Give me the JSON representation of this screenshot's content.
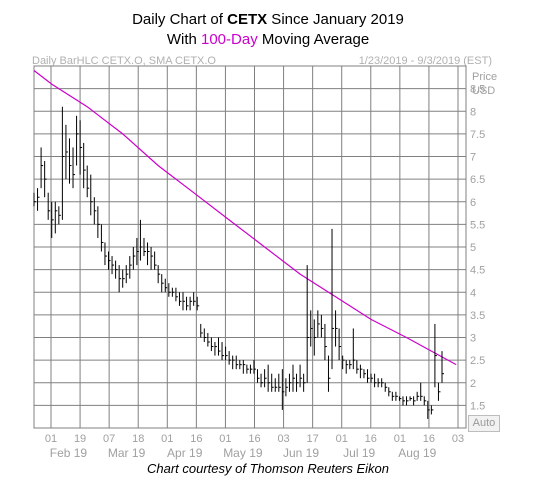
{
  "title": {
    "line1_prefix": "Daily Chart of ",
    "symbol": "CETX",
    "line1_suffix": " Since January 2019",
    "line2_prefix": "With ",
    "highlight": "100-Day",
    "line2_suffix": " Moving Average"
  },
  "subtitle_left": "Daily BarHLC CETX.O, SMA CETX.O",
  "subtitle_right": "1/23/2019 - 9/3/2019 (EST)",
  "footer": "Chart courtesy of Thomson Reuters Eikon",
  "auto_label": "Auto",
  "colors": {
    "price": "#000000",
    "sma": "#cc00cc",
    "grid": "#808080"
  },
  "chart_data": {
    "type": "line",
    "ylabel": "Price USD",
    "y_axis_title": "Price",
    "y_axis_unit": "USD",
    "ylim": [
      1.0,
      9.0
    ],
    "y_ticks": [
      1.5,
      2,
      2.5,
      3,
      3.5,
      4,
      4.5,
      5,
      5.5,
      6,
      6.5,
      7,
      7.5,
      8,
      8.5
    ],
    "x_day_ticks": [
      "01",
      "19",
      "07",
      "18",
      "01",
      "16",
      "01",
      "16",
      "03",
      "17",
      "01",
      "16",
      "01",
      "16",
      "03"
    ],
    "x_month_labels": [
      "Feb 19",
      "Mar 19",
      "Apr 19",
      "May 19",
      "Jun 19",
      "Jul 19",
      "Aug 19"
    ],
    "grid": true,
    "series": [
      {
        "name": "Daily BarHLC CETX.O",
        "style": "hlc-bars",
        "bars": [
          [
            6.2,
            5.9,
            6.0
          ],
          [
            6.3,
            5.8,
            6.1
          ],
          [
            7.2,
            6.3,
            6.8
          ],
          [
            6.9,
            6.1,
            6.5
          ],
          [
            6.2,
            5.6,
            5.8
          ],
          [
            6.0,
            5.2,
            5.6
          ],
          [
            6.0,
            5.3,
            5.8
          ],
          [
            5.9,
            5.5,
            5.7
          ],
          [
            8.1,
            5.6,
            7.0
          ],
          [
            7.7,
            6.5,
            7.1
          ],
          [
            7.4,
            6.4,
            6.8
          ],
          [
            7.2,
            6.3,
            6.6
          ],
          [
            7.9,
            6.8,
            7.5
          ],
          [
            7.8,
            6.6,
            7.2
          ],
          [
            7.3,
            6.3,
            6.7
          ],
          [
            6.8,
            6.1,
            6.3
          ],
          [
            6.6,
            5.7,
            6.0
          ],
          [
            6.1,
            5.5,
            5.8
          ],
          [
            5.9,
            5.2,
            5.5
          ],
          [
            5.5,
            4.9,
            5.1
          ],
          [
            5.1,
            4.6,
            4.8
          ],
          [
            4.9,
            4.5,
            4.7
          ],
          [
            4.8,
            4.4,
            4.6
          ],
          [
            4.7,
            4.3,
            4.5
          ],
          [
            4.6,
            4.0,
            4.3
          ],
          [
            4.5,
            4.1,
            4.3
          ],
          [
            4.6,
            4.2,
            4.4
          ],
          [
            4.8,
            4.3,
            4.6
          ],
          [
            5.0,
            4.5,
            4.8
          ],
          [
            5.2,
            4.6,
            4.9
          ],
          [
            5.6,
            4.7,
            5.0
          ],
          [
            5.2,
            4.8,
            4.9
          ],
          [
            5.1,
            4.6,
            4.9
          ],
          [
            5.0,
            4.5,
            4.8
          ],
          [
            4.9,
            4.5,
            4.6
          ],
          [
            4.6,
            4.2,
            4.4
          ],
          [
            4.4,
            4.0,
            4.2
          ],
          [
            4.3,
            4.0,
            4.1
          ],
          [
            4.2,
            3.9,
            4.0
          ],
          [
            4.1,
            3.9,
            4.0
          ],
          [
            4.1,
            3.8,
            3.9
          ],
          [
            4.0,
            3.7,
            3.8
          ],
          [
            4.0,
            3.6,
            3.8
          ],
          [
            3.9,
            3.6,
            3.7
          ],
          [
            3.9,
            3.6,
            3.8
          ],
          [
            4.0,
            3.7,
            3.8
          ],
          [
            3.9,
            3.6,
            3.7
          ],
          [
            3.3,
            3.0,
            3.1
          ],
          [
            3.2,
            2.9,
            3.0
          ],
          [
            3.1,
            2.8,
            2.9
          ],
          [
            3.0,
            2.7,
            2.8
          ],
          [
            2.9,
            2.6,
            2.8
          ],
          [
            3.0,
            2.6,
            2.7
          ],
          [
            2.9,
            2.5,
            2.6
          ],
          [
            2.8,
            2.5,
            2.6
          ],
          [
            2.7,
            2.4,
            2.5
          ],
          [
            2.6,
            2.3,
            2.5
          ],
          [
            2.6,
            2.3,
            2.4
          ],
          [
            2.5,
            2.3,
            2.4
          ],
          [
            2.5,
            2.2,
            2.4
          ],
          [
            2.4,
            2.2,
            2.3
          ],
          [
            2.4,
            2.2,
            2.3
          ],
          [
            2.5,
            2.2,
            2.3
          ],
          [
            2.3,
            2.0,
            2.1
          ],
          [
            2.2,
            1.9,
            2.0
          ],
          [
            2.3,
            1.9,
            2.1
          ],
          [
            2.4,
            1.8,
            2.0
          ],
          [
            2.2,
            1.8,
            1.9
          ],
          [
            2.1,
            1.8,
            1.9
          ],
          [
            2.2,
            1.8,
            1.9
          ],
          [
            2.3,
            1.4,
            1.8
          ],
          [
            2.1,
            1.7,
            1.9
          ],
          [
            2.2,
            1.8,
            2.0
          ],
          [
            2.4,
            1.8,
            2.1
          ],
          [
            2.2,
            1.8,
            2.0
          ],
          [
            2.4,
            1.9,
            2.1
          ],
          [
            2.2,
            1.8,
            2.0
          ],
          [
            4.6,
            2.0,
            3.0
          ],
          [
            3.6,
            2.8,
            3.2
          ],
          [
            3.4,
            2.6,
            3.0
          ],
          [
            3.6,
            3.0,
            3.3
          ],
          [
            3.5,
            3.0,
            3.2
          ],
          [
            3.3,
            2.5,
            2.8
          ],
          [
            2.6,
            1.8,
            2.1
          ],
          [
            5.4,
            2.3,
            3.2
          ],
          [
            3.6,
            2.8,
            3.2
          ],
          [
            3.2,
            2.5,
            2.8
          ],
          [
            2.6,
            2.3,
            2.5
          ],
          [
            2.5,
            2.2,
            2.4
          ],
          [
            2.5,
            2.3,
            2.4
          ],
          [
            3.2,
            2.3,
            2.5
          ],
          [
            2.5,
            2.2,
            2.3
          ],
          [
            2.4,
            2.1,
            2.3
          ],
          [
            2.3,
            2.1,
            2.2
          ],
          [
            2.3,
            2.0,
            2.1
          ],
          [
            2.2,
            2.0,
            2.1
          ],
          [
            2.2,
            1.9,
            2.0
          ],
          [
            2.1,
            1.9,
            2.0
          ],
          [
            2.1,
            1.9,
            2.0
          ],
          [
            2.0,
            1.8,
            1.9
          ],
          [
            1.9,
            1.7,
            1.8
          ],
          [
            1.8,
            1.6,
            1.7
          ],
          [
            1.8,
            1.6,
            1.7
          ],
          [
            1.7,
            1.6,
            1.65
          ],
          [
            1.7,
            1.5,
            1.6
          ],
          [
            1.7,
            1.5,
            1.6
          ],
          [
            1.7,
            1.6,
            1.65
          ],
          [
            1.7,
            1.5,
            1.6
          ],
          [
            1.8,
            1.6,
            1.7
          ],
          [
            2.0,
            1.6,
            1.7
          ],
          [
            1.7,
            1.5,
            1.6
          ],
          [
            1.6,
            1.2,
            1.4
          ],
          [
            1.5,
            1.3,
            1.4
          ],
          [
            3.3,
            1.9,
            2.6
          ],
          [
            2.0,
            1.6,
            1.8
          ],
          [
            2.7,
            2.0,
            2.2
          ]
        ]
      },
      {
        "name": "SMA CETX.O",
        "style": "line",
        "points": [
          [
            0,
            8.9
          ],
          [
            5,
            8.6
          ],
          [
            15,
            8.1
          ],
          [
            25,
            7.5
          ],
          [
            35,
            6.8
          ],
          [
            45,
            6.2
          ],
          [
            55,
            5.6
          ],
          [
            65,
            5.0
          ],
          [
            75,
            4.4
          ],
          [
            85,
            3.9
          ],
          [
            95,
            3.4
          ],
          [
            105,
            3.0
          ],
          [
            112,
            2.7
          ],
          [
            119,
            2.4
          ]
        ]
      }
    ]
  }
}
